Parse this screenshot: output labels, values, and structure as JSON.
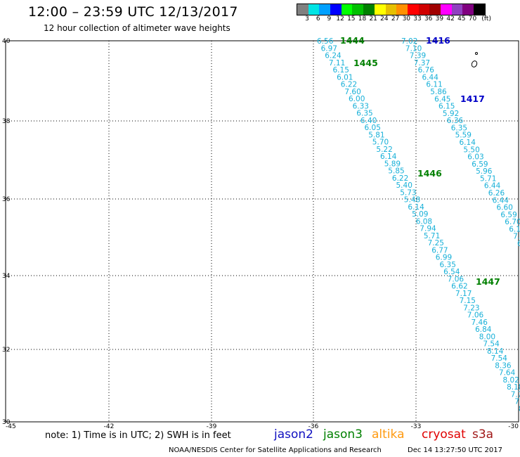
{
  "header": {
    "title": "12:00 – 23:59 UTC 12/13/2017",
    "subtitle": "12 hour collection of altimeter wave heights"
  },
  "colorbar": {
    "colors": [
      "#808080",
      "#00e4e4",
      "#00a0ff",
      "#0000ff",
      "#00ff00",
      "#00c000",
      "#008000",
      "#ffff00",
      "#e6c000",
      "#ff9000",
      "#ff0000",
      "#d00000",
      "#a00000",
      "#ff00ff",
      "#9040c0",
      "#800080",
      "#000000"
    ],
    "labels": [
      "3",
      "6",
      "9",
      "12",
      "15",
      "18",
      "21",
      "24",
      "27",
      "30",
      "33",
      "36",
      "39",
      "42",
      "45",
      "70",
      "(ft)"
    ]
  },
  "map": {
    "lat_labels": [
      "40",
      "38",
      "36",
      "34",
      "32",
      "30"
    ],
    "lon_labels": [
      "-45",
      "-42",
      "-39",
      "-36",
      "-33",
      "-30"
    ],
    "passes": [
      {
        "id": "1444",
        "color": "#008000"
      },
      {
        "id": "1445",
        "color": "#008000"
      },
      {
        "id": "1446",
        "color": "#008000"
      },
      {
        "id": "1447",
        "color": "#008000"
      },
      {
        "id": "1416",
        "color": "#0000c8"
      },
      {
        "id": "1417",
        "color": "#0000c8"
      }
    ],
    "track_a_values": [
      "6.56",
      "6.97",
      "6.24",
      "7.11",
      "6.15",
      "6.01",
      "6.22",
      "7.60",
      "6.00",
      "6.33",
      "6.35",
      "6.40",
      "6.05",
      "5.81",
      "5.70",
      "5.22",
      "6.14",
      "5.89",
      "5.85",
      "6.22",
      "5.40",
      "5.73",
      "5.48",
      "6.14",
      "5.09",
      "6.08",
      "7.94",
      "5.71",
      "7.25",
      "6.77",
      "6.99",
      "6.35",
      "6.54",
      "7.06",
      "6.62",
      "7.17",
      "7.15",
      "7.23",
      "7.06",
      "7.46",
      "6.84",
      "8.00",
      "7.54",
      "8.14",
      "7.54",
      "8.36",
      "7.64",
      "8.02",
      "8.18",
      "7.7",
      "7.",
      "8"
    ],
    "track_b_values": [
      "7.02",
      "7.10",
      "7.39",
      "7.37",
      "6.76",
      "6.44",
      "6.11",
      "5.86",
      "6.45",
      "6.15",
      "5.92",
      "6.36",
      "6.35",
      "5.59",
      "6.14",
      "5.50",
      "6.03",
      "6.59",
      "5.96",
      "5.71",
      "6.44",
      "6.26",
      "6.44",
      "6.60",
      "6.59",
      "6.70",
      "6.1",
      "7.",
      "6"
    ]
  },
  "note": "note:  1) Time is in UTC;  2) SWH is in feet",
  "legend": [
    {
      "name": "jason2",
      "color": "#1010c0"
    },
    {
      "name": "jason3",
      "color": "#008000"
    },
    {
      "name": "altika",
      "color": "#ff9a10"
    },
    {
      "name": "cryosat",
      "color": "#e00000"
    },
    {
      "name": "s3a",
      "color": "#a01818"
    }
  ],
  "footer": {
    "center": "NOAA/NESDIS Center for Satellite Applications and Research",
    "timestamp": "Dec 14 13:27:50 UTC 2017"
  }
}
